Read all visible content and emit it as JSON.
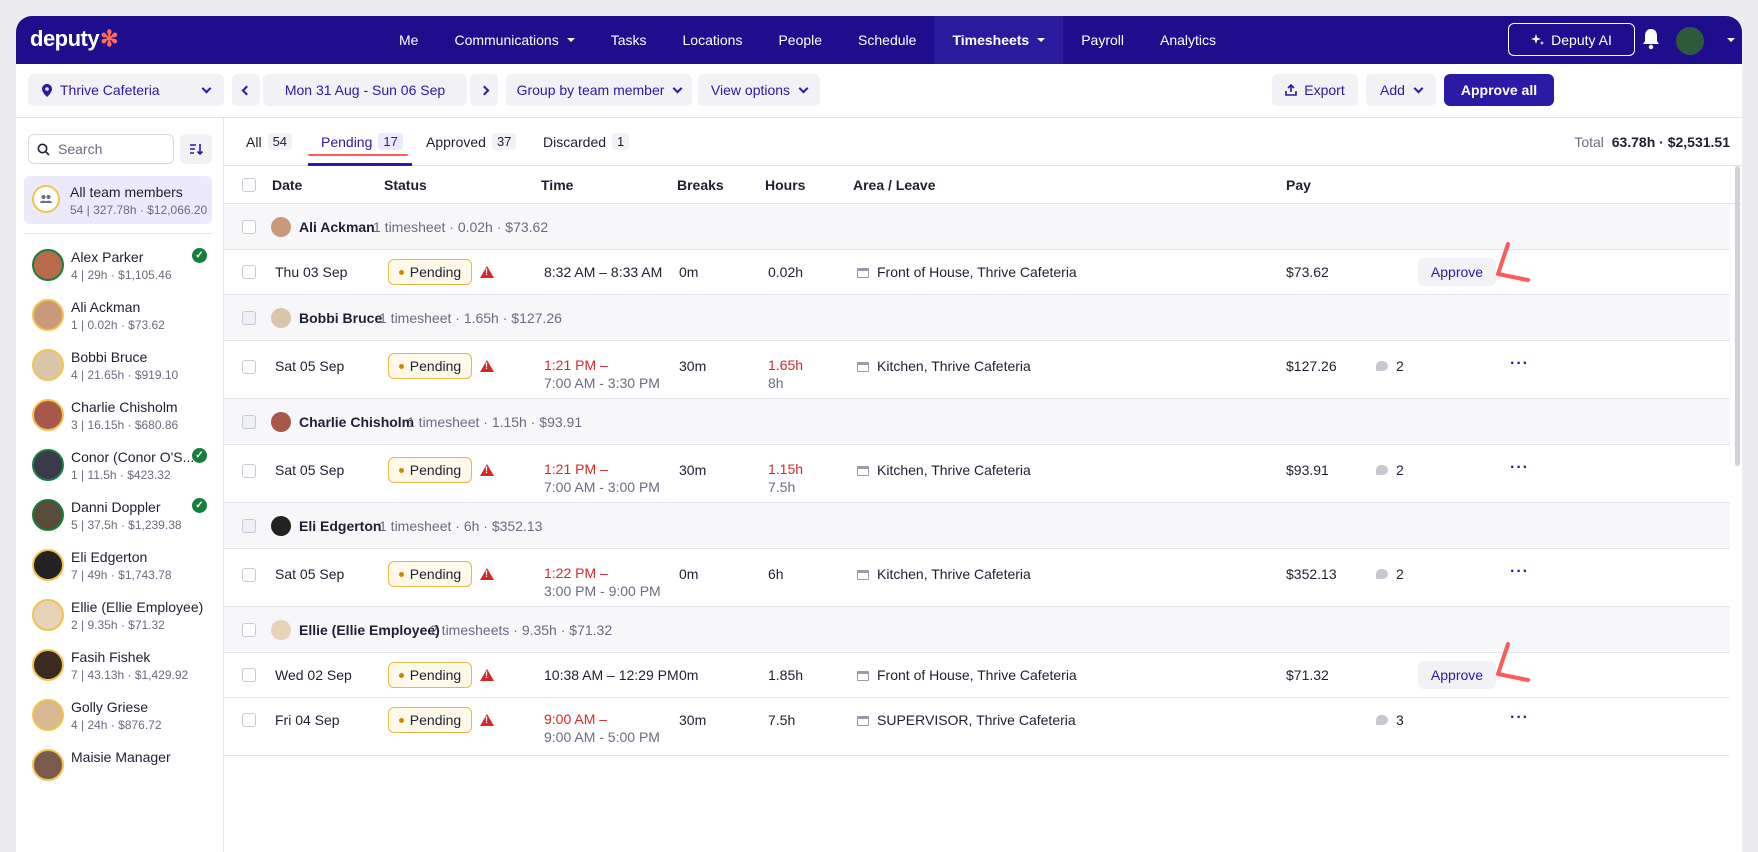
{
  "nav": {
    "logo": "deputy",
    "items": [
      {
        "label": "Me",
        "dropdown": false,
        "active": false
      },
      {
        "label": "Communications",
        "dropdown": true,
        "active": false
      },
      {
        "label": "Tasks",
        "dropdown": false,
        "active": false
      },
      {
        "label": "Locations",
        "dropdown": false,
        "active": false
      },
      {
        "label": "People",
        "dropdown": false,
        "active": false
      },
      {
        "label": "Schedule",
        "dropdown": false,
        "active": false
      },
      {
        "label": "Timesheets",
        "dropdown": true,
        "active": true
      },
      {
        "label": "Payroll",
        "dropdown": false,
        "active": false
      },
      {
        "label": "Analytics",
        "dropdown": false,
        "active": false
      }
    ],
    "ai_label": "Deputy AI"
  },
  "toolbar": {
    "location": "Thrive Cafeteria",
    "date_range": "Mon 31 Aug - Sun 06 Sep",
    "group_by": "Group by team member",
    "view_options": "View options",
    "export": "Export",
    "add": "Add",
    "approve_all": "Approve all"
  },
  "sidebar": {
    "search_placeholder": "Search",
    "all_members": {
      "name": "All team members",
      "stats": "54 | 327.78h · $12,066.20"
    },
    "members": [
      {
        "name": "Alex Parker",
        "stats": "4 | 29h · $1,105.46",
        "approved": true
      },
      {
        "name": "Ali Ackman",
        "stats": "1 | 0.02h · $73.62",
        "approved": false
      },
      {
        "name": "Bobbi Bruce",
        "stats": "4 | 21.65h · $919.10",
        "approved": false
      },
      {
        "name": "Charlie Chisholm",
        "stats": "3 | 16.15h · $680.86",
        "approved": false
      },
      {
        "name": "Conor (Conor O'S...",
        "stats": "1 | 11.5h · $423.32",
        "approved": true
      },
      {
        "name": "Danni Doppler",
        "stats": "5 | 37.5h · $1,239.38",
        "approved": true
      },
      {
        "name": "Eli Edgerton",
        "stats": "7 | 49h · $1,743.78",
        "approved": false
      },
      {
        "name": "Ellie (Ellie Employee)",
        "stats": "2 | 9.35h · $71.32",
        "approved": false
      },
      {
        "name": "Fasih Fishek",
        "stats": "7 | 43.13h · $1,429.92",
        "approved": false
      },
      {
        "name": "Golly Griese",
        "stats": "4 | 24h · $876.72",
        "approved": false
      },
      {
        "name": "Maisie Manager",
        "stats": "",
        "approved": false
      }
    ]
  },
  "tabs": [
    {
      "label": "All",
      "count": "54"
    },
    {
      "label": "Pending",
      "count": "17"
    },
    {
      "label": "Approved",
      "count": "37"
    },
    {
      "label": "Discarded",
      "count": "1"
    }
  ],
  "total": {
    "label": "Total",
    "value": "63.78h · $2,531.51"
  },
  "columns": [
    "Date",
    "Status",
    "Time",
    "Breaks",
    "Hours",
    "Area / Leave",
    "Pay"
  ],
  "groups": [
    {
      "name": "Ali Ackman",
      "summary": "1 timesheet · 0.02h · $73.62",
      "rows": [
        {
          "date": "Thu 03 Sep",
          "status": "Pending",
          "time": "8:32 AM – 8:33 AM",
          "time_sub": "",
          "breaks": "0m",
          "hours": "0.02h",
          "hours_sub": "",
          "area": "Front of House, Thrive Cafeteria",
          "pay": "$73.62",
          "approve": "Approve",
          "comments": ""
        }
      ]
    },
    {
      "name": "Bobbi Bruce",
      "summary": "1 timesheet · 1.65h · $127.26",
      "rows": [
        {
          "date": "Sat 05 Sep",
          "status": "Pending",
          "time": "1:21 PM –",
          "time_sub": "7:00 AM - 3:30 PM",
          "breaks": "30m",
          "hours": "1.65h",
          "hours_sub": "8h",
          "area": "Kitchen, Thrive Cafeteria",
          "pay": "$127.26",
          "approve": "",
          "comments": "2"
        }
      ]
    },
    {
      "name": "Charlie Chisholm",
      "summary": "1 timesheet · 1.15h · $93.91",
      "rows": [
        {
          "date": "Sat 05 Sep",
          "status": "Pending",
          "time": "1:21 PM –",
          "time_sub": "7:00 AM - 3:00 PM",
          "breaks": "30m",
          "hours": "1.15h",
          "hours_sub": "7.5h",
          "area": "Kitchen, Thrive Cafeteria",
          "pay": "$93.91",
          "approve": "",
          "comments": "2"
        }
      ]
    },
    {
      "name": "Eli Edgerton",
      "summary": "1 timesheet · 6h · $352.13",
      "rows": [
        {
          "date": "Sat 05 Sep",
          "status": "Pending",
          "time": "1:22 PM –",
          "time_sub": "3:00 PM - 9:00 PM",
          "breaks": "0m",
          "hours": "6h",
          "hours_sub": "",
          "area": "Kitchen, Thrive Cafeteria",
          "pay": "$352.13",
          "approve": "",
          "comments": "2"
        }
      ]
    },
    {
      "name": "Ellie (Ellie Employee)",
      "summary": "2 timesheets · 9.35h · $71.32",
      "rows": [
        {
          "date": "Wed 02 Sep",
          "status": "Pending",
          "time": "10:38 AM – 12:29 PM",
          "time_sub": "",
          "breaks": "0m",
          "hours": "1.85h",
          "hours_sub": "",
          "area": "Front of House, Thrive Cafeteria",
          "pay": "$71.32",
          "approve": "Approve",
          "comments": ""
        },
        {
          "date": "Fri 04 Sep",
          "status": "Pending",
          "time": "9:00 AM –",
          "time_sub": "9:00 AM - 5:00 PM",
          "breaks": "30m",
          "hours": "7.5h",
          "hours_sub": "",
          "area": "SUPERVISOR, Thrive Cafeteria",
          "pay": "",
          "approve": "",
          "comments": "3"
        }
      ]
    }
  ]
}
